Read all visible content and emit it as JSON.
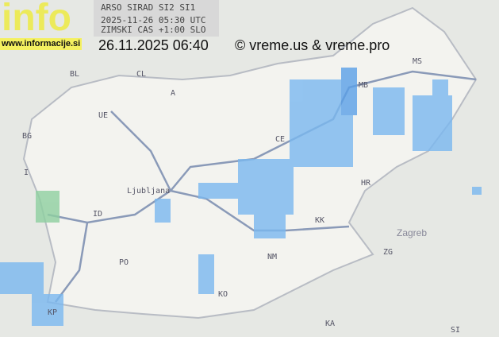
{
  "logo": {
    "text": "info",
    "url": "www.informacije.si"
  },
  "header": {
    "line1": "ARSO SIRAD SI2 SI1",
    "line2": "2025-11-26 05:30 UTC",
    "line3": "ZIMSKI CAS +1:00 SLO"
  },
  "local_time": "26.11.2025 06:40",
  "copyright": "© vreme.us & vreme.pro",
  "map_labels": {
    "bl": "BL",
    "cl": "CL",
    "ue": "UE",
    "bg": "BG",
    "i": "I",
    "id": "ID",
    "po": "PO",
    "kp": "KP",
    "ko": "KO",
    "nm": "NM",
    "kk": "KK",
    "ce": "CE",
    "mb": "MB",
    "ms": "MS",
    "hr": "HR",
    "zagreb": "Zagreb",
    "zg": "ZG",
    "ka": "KA",
    "si": "SI",
    "a": "A",
    "ljubljana": "Ljubljana"
  },
  "colors": {
    "rain_light": "#7ab8f0",
    "rain_medium": "#5aa0e8",
    "rain_heavy": "#8ed0a0",
    "country": "#f3f3ef"
  }
}
